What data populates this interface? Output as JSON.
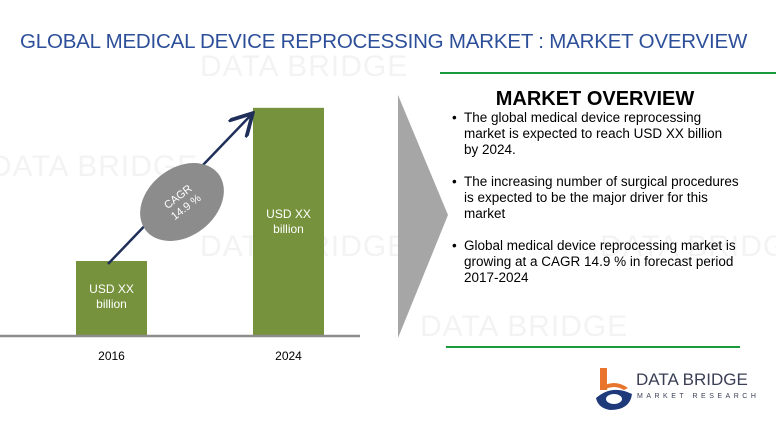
{
  "title": "GLOBAL MEDICAL DEVICE REPROCESSING MARKET : MARKET OVERVIEW",
  "watermark": "DATA BRIDGE",
  "colors": {
    "bar": "#76923c",
    "title": "#2d4f9a",
    "arrow": "#1f2f5a",
    "ellipse": "#8c8c8c",
    "chevron": "#a6a6a6",
    "rule": "#1a9a3a"
  },
  "chart_data": {
    "type": "bar",
    "categories": [
      "2016",
      "2024"
    ],
    "values": [
      1,
      3.07
    ],
    "value_note": "relative bar heights; actual values not disclosed",
    "data_labels": [
      "USD XX billion",
      "USD XX billion"
    ],
    "annotation": {
      "line1": "CAGR",
      "line2": "14.9 %"
    },
    "title": "",
    "xlabel": "",
    "ylabel": ""
  },
  "panel": {
    "heading": "MARKET OVERVIEW",
    "bullets": [
      "The global medical device reprocessing market is expected to reach USD XX billion by 2024.",
      "The increasing number of surgical procedures is expected to be the major driver for this market",
      "Global medical device reprocessing market is growing at a CAGR 14.9 % in forecast period  2017-2024"
    ]
  },
  "logo": {
    "name": "DATA BRIDGE",
    "tagline": "MARKET RESEARCH"
  }
}
